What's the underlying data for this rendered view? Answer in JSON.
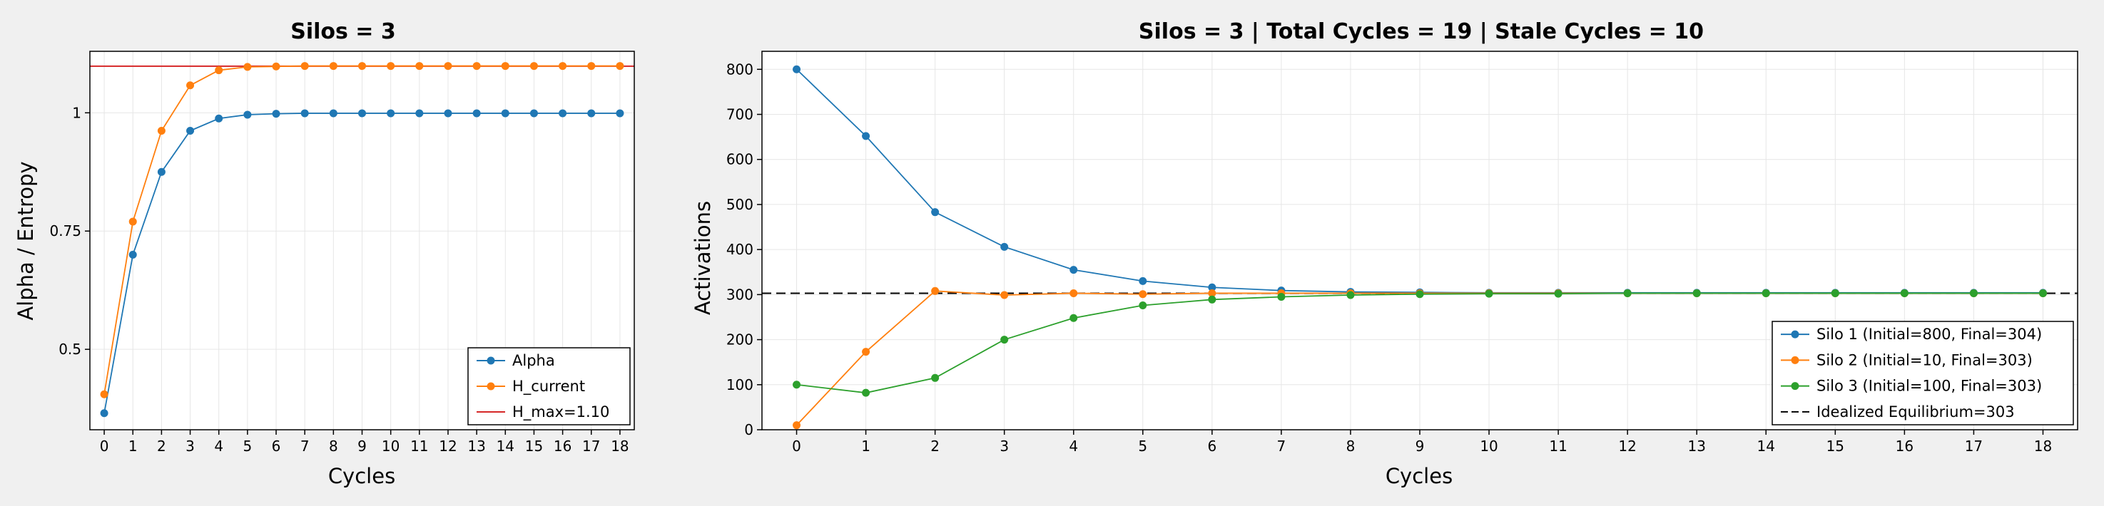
{
  "chart_data": [
    {
      "type": "line",
      "title": "Silos = 3",
      "xlabel": "Cycles",
      "ylabel": "Alpha / Entropy",
      "x": [
        0,
        1,
        2,
        3,
        4,
        5,
        6,
        7,
        8,
        9,
        10,
        11,
        12,
        13,
        14,
        15,
        16,
        17,
        18
      ],
      "xlim": [
        -0.5,
        18.5
      ],
      "ylim": [
        0.33,
        1.13
      ],
      "yticks": [
        0.5,
        0.75,
        1
      ],
      "ytick_labels": [
        "0.5",
        "0.75",
        "1"
      ],
      "grid": true,
      "legend_position": "lower-right",
      "series": [
        {
          "name": "Alpha",
          "color": "#1f77b4",
          "marker": "circle",
          "values": [
            0.365,
            0.7,
            0.875,
            0.962,
            0.988,
            0.996,
            0.998,
            0.999,
            0.999,
            0.999,
            0.999,
            0.999,
            0.999,
            0.999,
            0.999,
            0.999,
            0.999,
            0.999,
            0.999
          ]
        },
        {
          "name": "H_current",
          "color": "#ff7f0e",
          "marker": "circle",
          "values": [
            0.405,
            0.77,
            0.962,
            1.058,
            1.09,
            1.097,
            1.098,
            1.099,
            1.099,
            1.099,
            1.099,
            1.099,
            1.099,
            1.099,
            1.099,
            1.099,
            1.099,
            1.099,
            1.099
          ]
        }
      ],
      "hlines": [
        {
          "name": "H_max=1.10",
          "value": 1.0986,
          "color": "#d62728",
          "style": "solid"
        }
      ]
    },
    {
      "type": "line",
      "title": "Silos = 3 | Total Cycles = 19 | Stale Cycles = 10",
      "xlabel": "Cycles",
      "ylabel": "Activations",
      "x": [
        0,
        1,
        2,
        3,
        4,
        5,
        6,
        7,
        8,
        9,
        10,
        11,
        12,
        13,
        14,
        15,
        16,
        17,
        18
      ],
      "xlim": [
        -0.5,
        18.5
      ],
      "ylim": [
        0,
        840
      ],
      "yticks": [
        0,
        100,
        200,
        300,
        400,
        500,
        600,
        700,
        800
      ],
      "grid": true,
      "legend_position": "lower-right",
      "series": [
        {
          "name": "Silo 1 (Initial=800, Final=304)",
          "color": "#1f77b4",
          "marker": "circle",
          "values": [
            800,
            652,
            483,
            406,
            355,
            330,
            316,
            309,
            306,
            305,
            304,
            304,
            304,
            304,
            304,
            304,
            304,
            304,
            304
          ]
        },
        {
          "name": "Silo 2 (Initial=10, Final=303)",
          "color": "#ff7f0e",
          "marker": "circle",
          "values": [
            10,
            173,
            308,
            299,
            303,
            301,
            303,
            303,
            303,
            303,
            303,
            303,
            303,
            303,
            303,
            303,
            303,
            303,
            303
          ]
        },
        {
          "name": "Silo 3 (Initial=100, Final=303)",
          "color": "#2ca02c",
          "marker": "circle",
          "values": [
            100,
            82,
            115,
            200,
            248,
            276,
            289,
            295,
            299,
            301,
            302,
            302,
            303,
            303,
            303,
            303,
            303,
            303,
            303
          ]
        }
      ],
      "hlines": [
        {
          "name": "Idealized Equilibrium=303",
          "value": 303,
          "color": "#000000",
          "style": "dashed"
        }
      ]
    }
  ]
}
